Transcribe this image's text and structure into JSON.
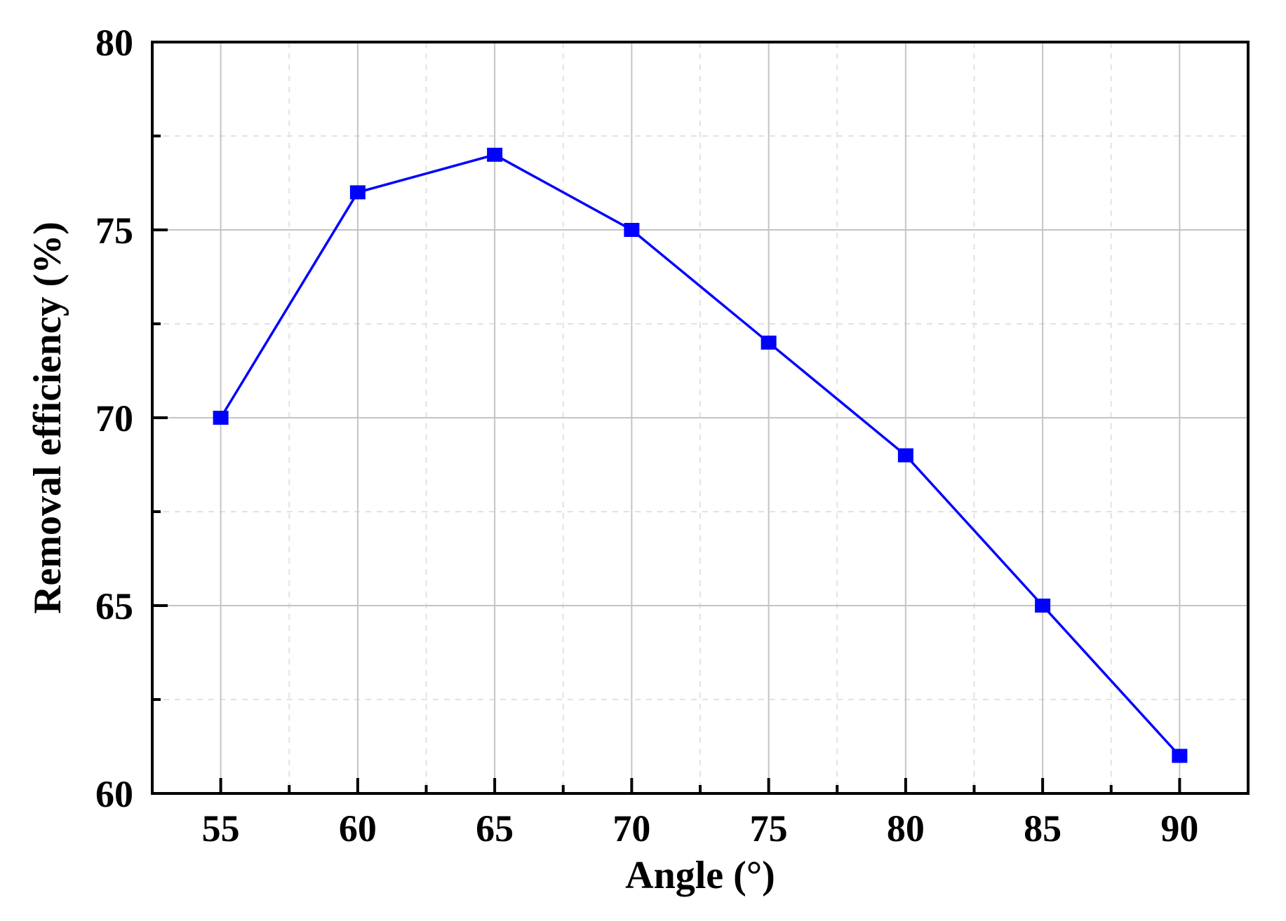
{
  "chart_data": {
    "type": "line",
    "title": "",
    "xlabel": "Angle (°)",
    "ylabel": "Removal efficiency (%)",
    "x": [
      55,
      60,
      65,
      70,
      75,
      80,
      85,
      90
    ],
    "series": [
      {
        "name": "Removal efficiency",
        "values": [
          70,
          76,
          77,
          75,
          72,
          69,
          65,
          61
        ],
        "color": "#0000ff",
        "marker": "square"
      }
    ],
    "xlim": [
      52.5,
      92.5
    ],
    "ylim": [
      60,
      80
    ],
    "xticks": [
      55,
      60,
      65,
      70,
      75,
      80,
      85,
      90
    ],
    "yticks": [
      60,
      65,
      70,
      75,
      80
    ],
    "grid": true,
    "legend": null
  },
  "colors": {
    "line": "#0000ff",
    "marker": "#0000ff",
    "axis": "#000000",
    "major_grid": "#c4c4c4",
    "minor_grid": "#e2e2e2"
  }
}
